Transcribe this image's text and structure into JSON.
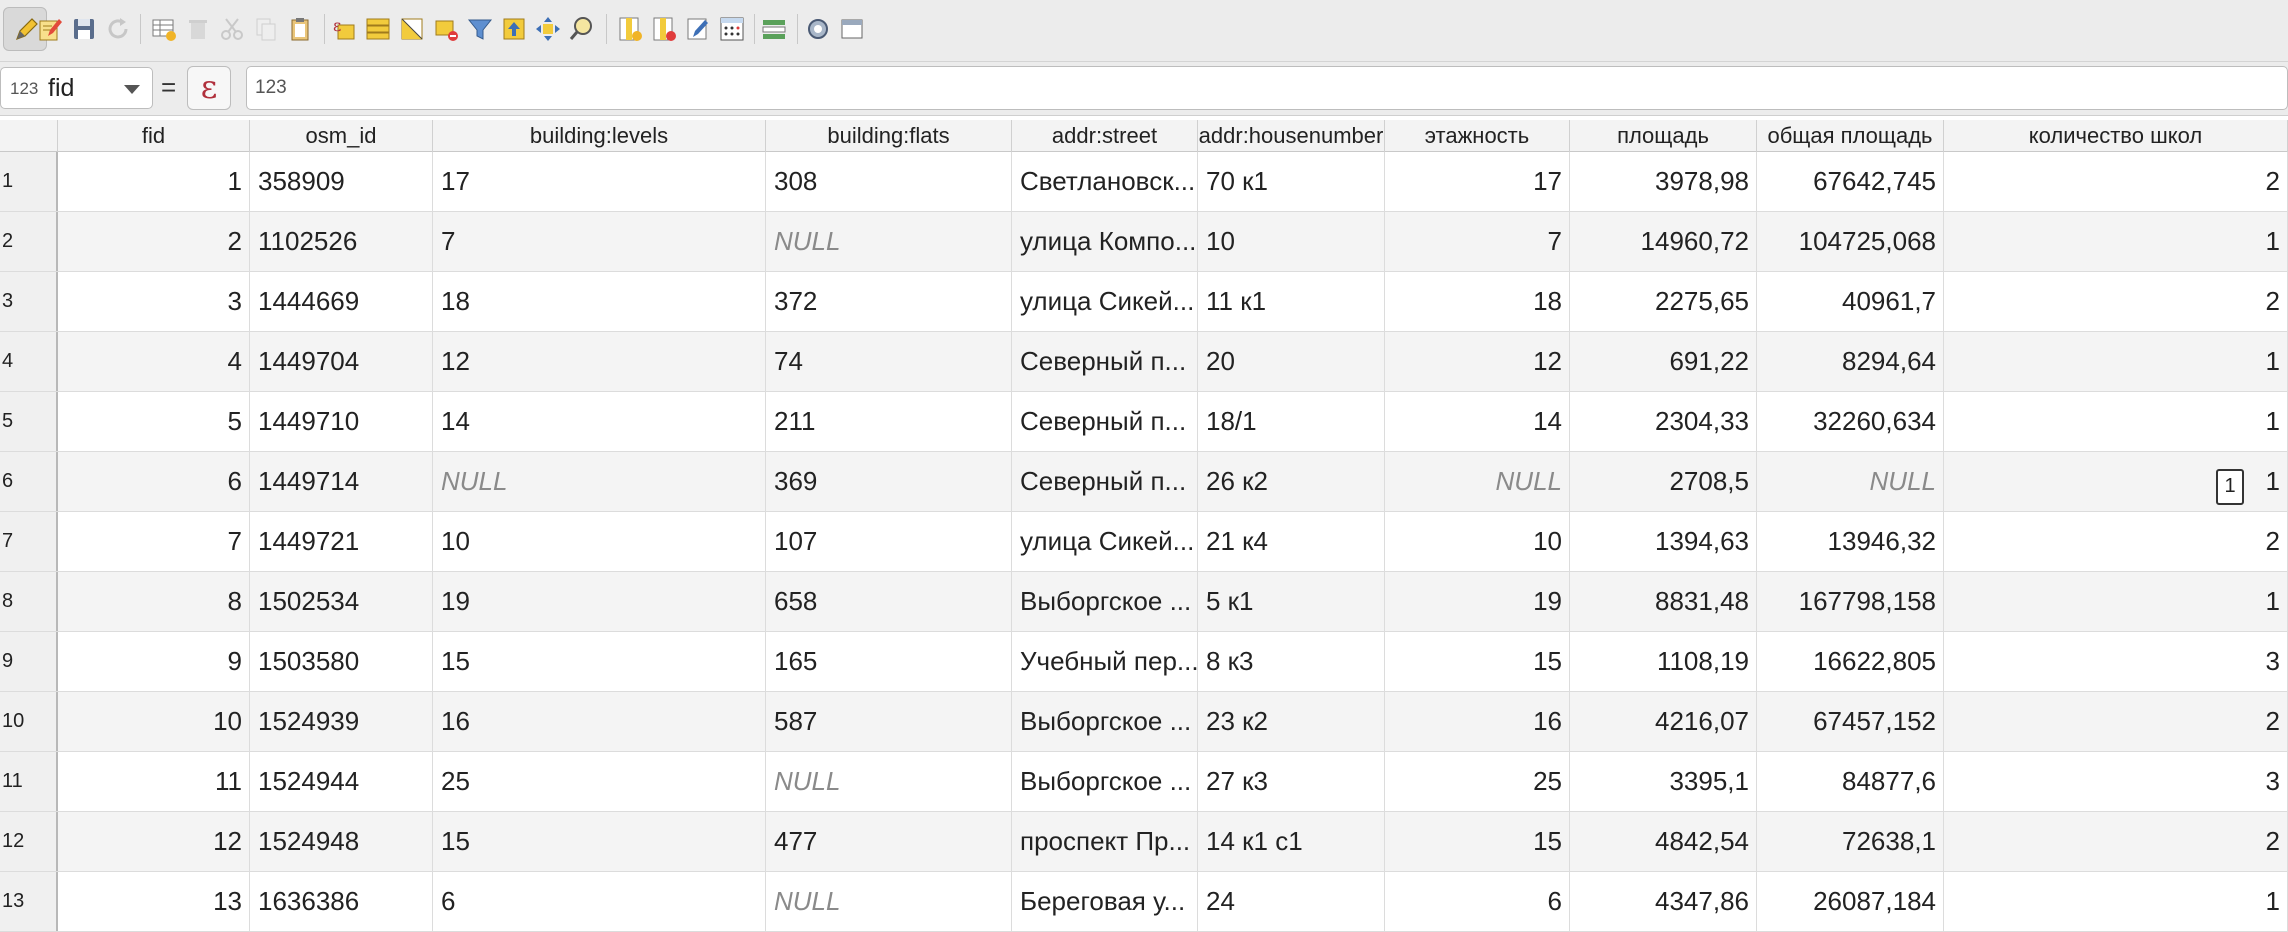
{
  "toolbar": {
    "buttons": [
      {
        "name": "toggle-editing-icon"
      },
      {
        "name": "toggle-multi-edit-icon"
      },
      {
        "name": "save-edits-icon"
      },
      {
        "name": "reload-table-icon"
      },
      {
        "name": "add-feature-icon"
      },
      {
        "name": "delete-selected-icon"
      },
      {
        "name": "cut-icon"
      },
      {
        "name": "copy-icon"
      },
      {
        "name": "paste-icon"
      },
      {
        "name": "select-by-expression-icon"
      },
      {
        "name": "select-all-icon"
      },
      {
        "name": "invert-selection-icon"
      },
      {
        "name": "deselect-all-icon"
      },
      {
        "name": "filter-select-icon"
      },
      {
        "name": "move-selection-to-top-icon"
      },
      {
        "name": "pan-to-selected-icon"
      },
      {
        "name": "zoom-to-selected-icon"
      },
      {
        "name": "new-field-icon"
      },
      {
        "name": "delete-field-icon"
      },
      {
        "name": "organize-columns-icon"
      },
      {
        "name": "field-calculator-icon"
      },
      {
        "name": "conditional-formatting-icon"
      },
      {
        "name": "actions-icon"
      },
      {
        "name": "dock-undock-icon"
      }
    ]
  },
  "expression_bar": {
    "field_type": "123",
    "field_name": "fid",
    "equals": "=",
    "epsilon": "ε",
    "value": "123"
  },
  "table": {
    "columns": [
      "fid",
      "osm_id",
      "building:levels",
      "building:flats",
      "addr:street",
      "addr:housenumber",
      "этажность",
      "площадь",
      "общая площадь",
      "количество школ"
    ],
    "rows": [
      {
        "n": "1",
        "fid": "1",
        "osm_id": "358909",
        "levels": "17",
        "flats": "308",
        "street": "Светлановск...",
        "house": "70 к1",
        "floors": "17",
        "area": "3978,98",
        "total": "67642,745",
        "schools": "2"
      },
      {
        "n": "2",
        "fid": "2",
        "osm_id": "1102526",
        "levels": "7",
        "flats": "NULL",
        "street": "улица Компо...",
        "house": "10",
        "floors": "7",
        "area": "14960,72",
        "total": "104725,068",
        "schools": "1"
      },
      {
        "n": "3",
        "fid": "3",
        "osm_id": "1444669",
        "levels": "18",
        "flats": "372",
        "street": "улица Сикей...",
        "house": "11 к1",
        "floors": "18",
        "area": "2275,65",
        "total": "40961,7",
        "schools": "2"
      },
      {
        "n": "4",
        "fid": "4",
        "osm_id": "1449704",
        "levels": "12",
        "flats": "74",
        "street": "Северный п...",
        "house": "20",
        "floors": "12",
        "area": "691,22",
        "total": "8294,64",
        "schools": "1"
      },
      {
        "n": "5",
        "fid": "5",
        "osm_id": "1449710",
        "levels": "14",
        "flats": "211",
        "street": "Северный п...",
        "house": "18/1",
        "floors": "14",
        "area": "2304,33",
        "total": "32260,634",
        "schools": "1"
      },
      {
        "n": "6",
        "fid": "6",
        "osm_id": "1449714",
        "levels": "NULL",
        "flats": "369",
        "street": "Северный п...",
        "house": "26 к2",
        "floors": "NULL",
        "area": "2708,5",
        "total": "NULL",
        "schools": "1"
      },
      {
        "n": "7",
        "fid": "7",
        "osm_id": "1449721",
        "levels": "10",
        "flats": "107",
        "street": "улица Сикей...",
        "house": "21 к4",
        "floors": "10",
        "area": "1394,63",
        "total": "13946,32",
        "schools": "2"
      },
      {
        "n": "8",
        "fid": "8",
        "osm_id": "1502534",
        "levels": "19",
        "flats": "658",
        "street": "Выборгское ...",
        "house": "5 к1",
        "floors": "19",
        "area": "8831,48",
        "total": "167798,158",
        "schools": "1"
      },
      {
        "n": "9",
        "fid": "9",
        "osm_id": "1503580",
        "levels": "15",
        "flats": "165",
        "street": "Учебный пер...",
        "house": "8 к3",
        "floors": "15",
        "area": "1108,19",
        "total": "16622,805",
        "schools": "3"
      },
      {
        "n": "10",
        "fid": "10",
        "osm_id": "1524939",
        "levels": "16",
        "flats": "587",
        "street": "Выборгское ...",
        "house": "23 к2",
        "floors": "16",
        "area": "4216,07",
        "total": "67457,152",
        "schools": "2"
      },
      {
        "n": "11",
        "fid": "11",
        "osm_id": "1524944",
        "levels": "25",
        "flats": "NULL",
        "street": "Выборгское ...",
        "house": "27 к3",
        "floors": "25",
        "area": "3395,1",
        "total": "84877,6",
        "schools": "3"
      },
      {
        "n": "12",
        "fid": "12",
        "osm_id": "1524948",
        "levels": "15",
        "flats": "477",
        "street": "проспект Пр...",
        "house": "14 к1 с1",
        "floors": "15",
        "area": "4842,54",
        "total": "72638,1",
        "schools": "2"
      },
      {
        "n": "13",
        "fid": "13",
        "osm_id": "1636386",
        "levels": "6",
        "flats": "NULL",
        "street": "Береговая у...",
        "house": "24",
        "floors": "6",
        "area": "4347,86",
        "total": "26087,184",
        "schools": "1"
      }
    ],
    "editing_cell": {
      "row": "6",
      "value": "1"
    }
  }
}
